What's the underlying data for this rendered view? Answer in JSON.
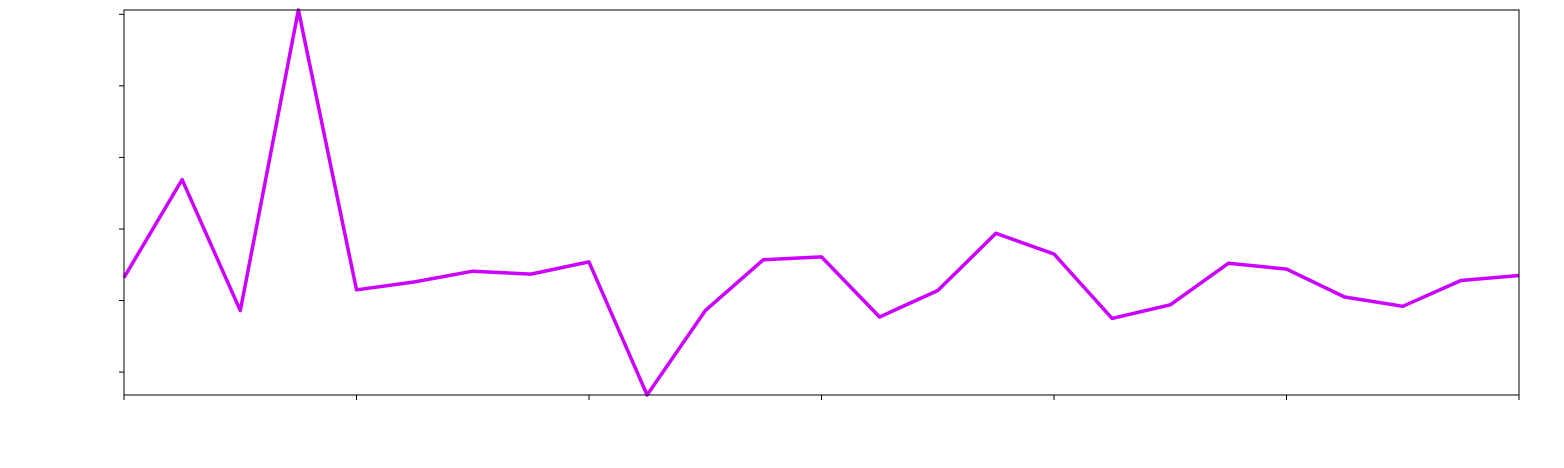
{
  "chart_data": {
    "type": "line",
    "title": "",
    "xlabel": "",
    "ylabel": "",
    "x": [
      0,
      1,
      2,
      3,
      4,
      5,
      6,
      7,
      8,
      9,
      10,
      11,
      12,
      13,
      14,
      15,
      16,
      17,
      18,
      19,
      20,
      21,
      22,
      23,
      24
    ],
    "series": [
      {
        "values": [
          4.88,
          6.25,
          4.42,
          8.62,
          4.71,
          4.82,
          4.97,
          4.93,
          5.1,
          3.24,
          4.42,
          5.13,
          5.17,
          4.33,
          4.7,
          5.5,
          5.21,
          4.31,
          4.5,
          5.08,
          5.0,
          4.61,
          4.48,
          4.84,
          4.91
        ],
        "color": "#cc00ff"
      }
    ],
    "xlim": [
      0,
      24
    ],
    "ylim": [
      3.24,
      8.62
    ],
    "xticks": [
      0,
      4,
      8,
      12,
      16,
      20,
      24
    ],
    "yticks": [
      3.56,
      4.56,
      5.56,
      6.56,
      7.56,
      8.56,
      9.56
    ],
    "grid": false,
    "legend": "none"
  }
}
